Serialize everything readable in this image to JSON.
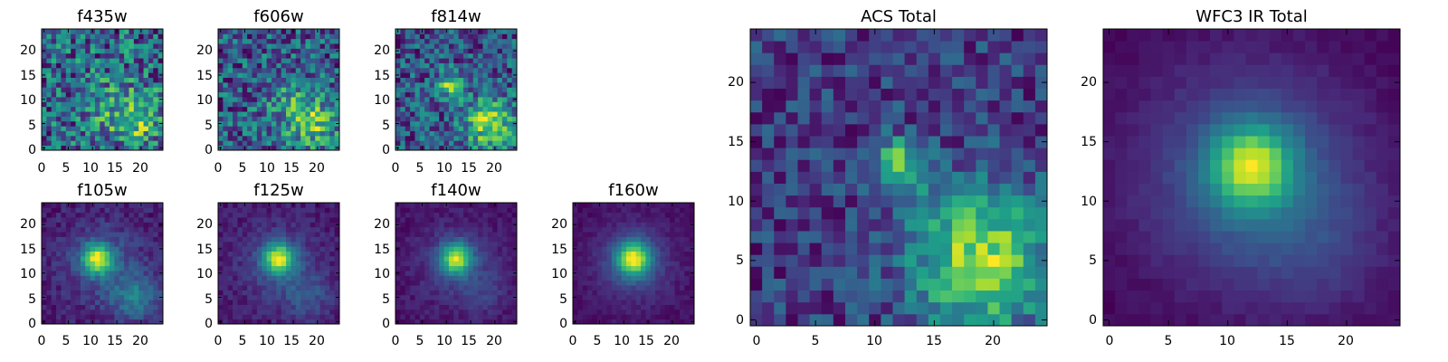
{
  "figure": {
    "background": "#ffffff",
    "colormap": "viridis",
    "colormap_stops": [
      "#440154",
      "#482878",
      "#3e4989",
      "#31688e",
      "#26828e",
      "#1f9e89",
      "#35b779",
      "#6ece58",
      "#b5de2b",
      "#fde725"
    ]
  },
  "chart_data": [
    {
      "type": "heatmap",
      "title": "f435w",
      "grid_size": 25,
      "xlim": [
        0,
        24
      ],
      "ylim": [
        0,
        24
      ],
      "xticks": [
        0,
        5,
        10,
        15,
        20
      ],
      "yticks": [
        0,
        5,
        10,
        15,
        20
      ],
      "features": [
        {
          "x": 19,
          "y": 6,
          "sigma": 3.5,
          "amplitude": 0.25
        },
        {
          "x": 14,
          "y": 9,
          "sigma": 4.5,
          "amplitude": 0.1
        }
      ],
      "background_level": 0.6,
      "noise": 0.22
    },
    {
      "type": "heatmap",
      "title": "f606w",
      "grid_size": 25,
      "xlim": [
        0,
        24
      ],
      "ylim": [
        0,
        24
      ],
      "xticks": [
        0,
        5,
        10,
        15,
        20
      ],
      "yticks": [
        0,
        5,
        10,
        15,
        20
      ],
      "features": [
        {
          "x": 19,
          "y": 5,
          "sigma": 3.5,
          "amplitude": 0.3
        },
        {
          "x": 14,
          "y": 10,
          "sigma": 3.5,
          "amplitude": 0.15
        }
      ],
      "background_level": 0.55,
      "noise": 0.2
    },
    {
      "type": "heatmap",
      "title": "f814w",
      "grid_size": 25,
      "xlim": [
        0,
        24
      ],
      "ylim": [
        0,
        24
      ],
      "xticks": [
        0,
        5,
        10,
        15,
        20
      ],
      "yticks": [
        0,
        5,
        10,
        15,
        20
      ],
      "features": [
        {
          "x": 11,
          "y": 13,
          "sigma": 1.8,
          "amplitude": 0.35
        },
        {
          "x": 19,
          "y": 5,
          "sigma": 3.5,
          "amplitude": 0.35
        }
      ],
      "background_level": 0.45,
      "noise": 0.16
    },
    {
      "type": "heatmap",
      "title": "f105w",
      "grid_size": 25,
      "xlim": [
        0,
        24
      ],
      "ylim": [
        0,
        24
      ],
      "xticks": [
        0,
        5,
        10,
        15,
        20
      ],
      "yticks": [
        0,
        5,
        10,
        15,
        20
      ],
      "features": [
        {
          "x": 11,
          "y": 13,
          "sigma": 2.2,
          "amplitude": 0.6
        },
        {
          "x": 12,
          "y": 12,
          "sigma": 6,
          "amplitude": 0.15
        },
        {
          "x": 19,
          "y": 5,
          "sigma": 3.5,
          "amplitude": 0.25
        }
      ],
      "background_level": 0.3,
      "noise": 0.07
    },
    {
      "type": "heatmap",
      "title": "f125w",
      "grid_size": 25,
      "xlim": [
        0,
        24
      ],
      "ylim": [
        0,
        24
      ],
      "xticks": [
        0,
        5,
        10,
        15,
        20
      ],
      "yticks": [
        0,
        5,
        10,
        15,
        20
      ],
      "features": [
        {
          "x": 12,
          "y": 13,
          "sigma": 2.2,
          "amplitude": 0.65
        },
        {
          "x": 12,
          "y": 12,
          "sigma": 6,
          "amplitude": 0.15
        },
        {
          "x": 18,
          "y": 5,
          "sigma": 3.5,
          "amplitude": 0.15
        }
      ],
      "background_level": 0.2,
      "noise": 0.06
    },
    {
      "type": "heatmap",
      "title": "f140w",
      "grid_size": 25,
      "xlim": [
        0,
        24
      ],
      "ylim": [
        0,
        24
      ],
      "xticks": [
        0,
        5,
        10,
        15,
        20
      ],
      "yticks": [
        0,
        5,
        10,
        15,
        20
      ],
      "features": [
        {
          "x": 12,
          "y": 13,
          "sigma": 2.2,
          "amplitude": 0.7
        },
        {
          "x": 12,
          "y": 12,
          "sigma": 6,
          "amplitude": 0.15
        },
        {
          "x": 18,
          "y": 6,
          "sigma": 3.5,
          "amplitude": 0.1
        }
      ],
      "background_level": 0.18,
      "noise": 0.05
    },
    {
      "type": "heatmap",
      "title": "f160w",
      "grid_size": 25,
      "xlim": [
        0,
        24
      ],
      "ylim": [
        0,
        24
      ],
      "xticks": [
        0,
        5,
        10,
        15,
        20
      ],
      "yticks": [
        0,
        5,
        10,
        15,
        20
      ],
      "features": [
        {
          "x": 12,
          "y": 13,
          "sigma": 2.4,
          "amplitude": 0.75
        },
        {
          "x": 12,
          "y": 12,
          "sigma": 6,
          "amplitude": 0.2
        }
      ],
      "background_level": 0.12,
      "noise": 0.04
    },
    {
      "type": "heatmap",
      "title": "ACS Total",
      "grid_size": 25,
      "xlim": [
        0,
        24
      ],
      "ylim": [
        0,
        24
      ],
      "xticks": [
        0,
        5,
        10,
        15,
        20
      ],
      "yticks": [
        0,
        5,
        10,
        15,
        20
      ],
      "features": [
        {
          "x": 12,
          "y": 13,
          "sigma": 1.6,
          "amplitude": 0.3
        },
        {
          "x": 19,
          "y": 5,
          "sigma": 4,
          "amplitude": 0.38
        }
      ],
      "background_level": 0.5,
      "noise": 0.1
    },
    {
      "type": "heatmap",
      "title": "WFC3 IR Total",
      "grid_size": 25,
      "xlim": [
        0,
        24
      ],
      "ylim": [
        0,
        24
      ],
      "xticks": [
        0,
        5,
        10,
        15,
        20
      ],
      "yticks": [
        0,
        5,
        10,
        15,
        20
      ],
      "features": [
        {
          "x": 12,
          "y": 13,
          "sigma": 2.3,
          "amplitude": 0.6
        },
        {
          "x": 12,
          "y": 12,
          "sigma": 6.5,
          "amplitude": 0.3
        },
        {
          "x": 18,
          "y": 6,
          "sigma": 4,
          "amplitude": 0.08
        }
      ],
      "background_level": 0.08,
      "noise": 0.025
    }
  ]
}
